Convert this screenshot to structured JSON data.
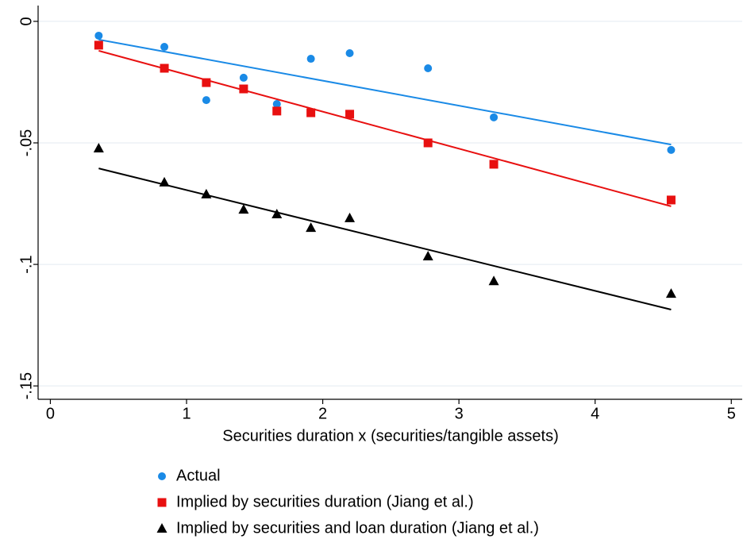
{
  "chart_data": {
    "type": "scatter",
    "x_label": "Securities duration x (securities/tangible assets)",
    "xlim": [
      -0.09,
      5.08
    ],
    "ylim": [
      -0.1555,
      0.0065
    ],
    "xticks": [
      0,
      1,
      2,
      3,
      4,
      5
    ],
    "yticks": [
      0,
      {
        "value": -0.05,
        "label": "-.05"
      },
      {
        "value": -0.1,
        "label": "-.1"
      },
      {
        "value": -0.15,
        "label": "-.15"
      }
    ],
    "grid": true,
    "legend": "bottom",
    "x": [
      0.355,
      0.837,
      1.145,
      1.419,
      1.663,
      1.913,
      2.198,
      2.773,
      3.256,
      4.558
    ],
    "series": [
      {
        "name": "Actual",
        "color": "#1a8ae6",
        "marker": "circle",
        "values": [
          -0.0059,
          -0.0105,
          -0.0324,
          -0.0232,
          -0.034,
          -0.0154,
          -0.0131,
          -0.0193,
          -0.0395,
          -0.0529
        ],
        "fit": {
          "x": [
            0.355,
            4.558
          ],
          "values": [
            -0.0075,
            -0.0507
          ]
        }
      },
      {
        "name": "Implied by securities duration (Jiang et al.)",
        "color": "#e81010",
        "marker": "square",
        "values": [
          -0.0098,
          -0.0193,
          -0.0252,
          -0.0278,
          -0.0369,
          -0.0376,
          -0.0382,
          -0.05,
          -0.0588,
          -0.0735
        ],
        "fit": {
          "x": [
            0.355,
            4.558
          ],
          "values": [
            -0.0121,
            -0.0761
          ]
        }
      },
      {
        "name": "Implied by securities and loan duration (Jiang et al.)",
        "color": "#000000",
        "marker": "triangle",
        "values": [
          -0.0523,
          -0.0663,
          -0.0712,
          -0.0775,
          -0.0794,
          -0.085,
          -0.081,
          -0.0967,
          -0.1069,
          -0.1121
        ],
        "fit": {
          "x": [
            0.355,
            4.558
          ],
          "values": [
            -0.0605,
            -0.1186
          ]
        }
      }
    ]
  }
}
